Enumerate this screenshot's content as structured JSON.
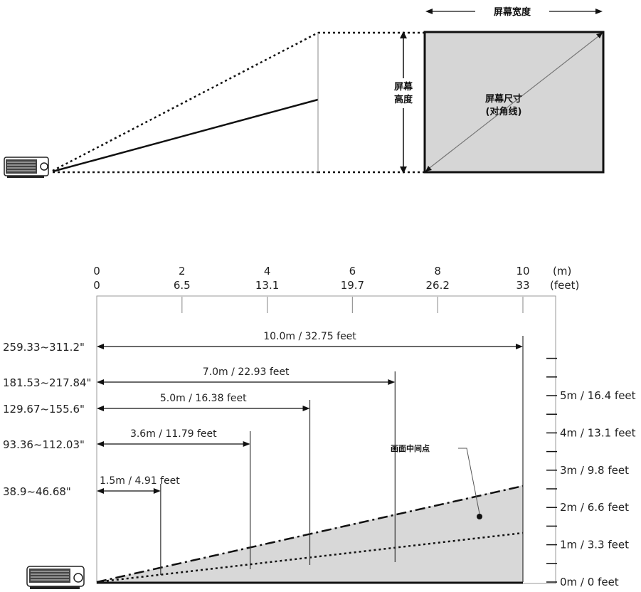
{
  "top_diagram": {
    "screen_width_label": "屏幕宽度",
    "screen_height_label_line1": "屏幕",
    "screen_height_label_line2": "高度",
    "screen_size_label_line1": "屏幕尺寸",
    "screen_size_label_line2": "(对角线)"
  },
  "chart_data": {
    "type": "diagram",
    "x_axis": {
      "unit_m": "(m)",
      "unit_feet": "(feet)",
      "ticks_m": [
        "0",
        "2",
        "4",
        "6",
        "8",
        "10"
      ],
      "ticks_feet": [
        "0",
        "6.5",
        "13.1",
        "19.7",
        "26.2",
        "33"
      ]
    },
    "distances": [
      {
        "size": "259.33~311.2\"",
        "label": "10.0m / 32.75 feet",
        "distance_m": 10.0
      },
      {
        "size": "181.53~217.84\"",
        "label": "7.0m / 22.93 feet",
        "distance_m": 7.0
      },
      {
        "size": "129.67~155.6\"",
        "label": "5.0m / 16.38 feet",
        "distance_m": 5.0
      },
      {
        "size": "93.36~112.03\"",
        "label": "3.6m / 11.79 feet",
        "distance_m": 3.6
      },
      {
        "size": "38.9~46.68\"",
        "label": "1.5m / 4.91 feet",
        "distance_m": 1.5
      }
    ],
    "height_labels": [
      "5m / 16.4 feet",
      "4m / 13.1 feet",
      "3m / 9.8 feet",
      "2m / 6.6 feet",
      "1m / 3.3 feet",
      "0m / 0 feet"
    ],
    "center_point_label": "画面中间点"
  }
}
